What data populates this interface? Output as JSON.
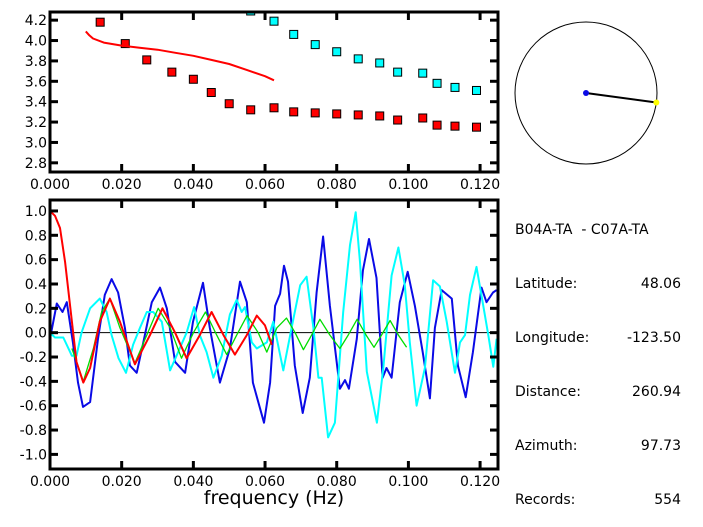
{
  "colors": {
    "red": "#ff0000",
    "cyan": "#00ffff",
    "blue": "#0a0ae6",
    "green": "#00dd00",
    "yellow": "#ffff00"
  },
  "chart_data": [
    {
      "type": "scatter",
      "xlim": [
        0,
        0.125
      ],
      "ylim": [
        2.71,
        4.28
      ],
      "xticks": [
        "0.000",
        "0.020",
        "0.040",
        "0.060",
        "0.080",
        "0.100",
        "0.120"
      ],
      "yticks": [
        "2.8",
        "3.0",
        "3.2",
        "3.4",
        "3.6",
        "3.8",
        "4.0",
        "4.2"
      ],
      "grid": false,
      "series": [
        {
          "color": "red",
          "marker": "square",
          "points": [
            [
              0.014,
              4.18
            ],
            [
              0.021,
              3.97
            ],
            [
              0.027,
              3.81
            ],
            [
              0.034,
              3.69
            ],
            [
              0.04,
              3.62
            ],
            [
              0.045,
              3.49
            ],
            [
              0.05,
              3.38
            ],
            [
              0.056,
              3.32
            ],
            [
              0.0625,
              3.34
            ],
            [
              0.068,
              3.3
            ],
            [
              0.074,
              3.29
            ],
            [
              0.08,
              3.28
            ],
            [
              0.086,
              3.27
            ],
            [
              0.092,
              3.26
            ],
            [
              0.097,
              3.22
            ],
            [
              0.104,
              3.24
            ],
            [
              0.108,
              3.17
            ],
            [
              0.113,
              3.16
            ],
            [
              0.119,
              3.15
            ]
          ]
        },
        {
          "color": "cyan",
          "marker": "square",
          "points": [
            [
              0.056,
              4.29
            ],
            [
              0.0625,
              4.19
            ],
            [
              0.068,
              4.06
            ],
            [
              0.074,
              3.96
            ],
            [
              0.08,
              3.89
            ],
            [
              0.086,
              3.82
            ],
            [
              0.092,
              3.78
            ],
            [
              0.097,
              3.69
            ],
            [
              0.104,
              3.68
            ],
            [
              0.108,
              3.58
            ],
            [
              0.113,
              3.54
            ],
            [
              0.119,
              3.51
            ]
          ]
        },
        {
          "color": "red",
          "marker": "line",
          "points": [
            [
              0.01,
              4.09
            ],
            [
              0.011,
              4.05
            ],
            [
              0.012,
              4.02
            ],
            [
              0.015,
              3.98
            ],
            [
              0.02,
              3.95
            ],
            [
              0.025,
              3.93
            ],
            [
              0.03,
              3.91
            ],
            [
              0.035,
              3.88
            ],
            [
              0.04,
              3.85
            ],
            [
              0.045,
              3.81
            ],
            [
              0.05,
              3.77
            ],
            [
              0.055,
              3.71
            ],
            [
              0.06,
              3.65
            ],
            [
              0.0625,
              3.61
            ]
          ]
        }
      ]
    },
    {
      "type": "line",
      "xlabel": "frequency (Hz)",
      "xlim": [
        0,
        0.125
      ],
      "ylim": [
        -1.12,
        1.09
      ],
      "xticks": [
        "0.000",
        "0.020",
        "0.040",
        "0.060",
        "0.080",
        "0.100",
        "0.120"
      ],
      "yticks": [
        "-1.0",
        "-0.8",
        "-0.6",
        "-0.4",
        "-0.2",
        "0.0",
        "0.2",
        "0.4",
        "0.6",
        "0.8",
        "1.0"
      ],
      "grid": false,
      "zero_line": true,
      "series": [
        {
          "color": "blue",
          "points": [
            [
              0,
              -0.05
            ],
            [
              0.0019,
              0.24
            ],
            [
              0.0035,
              0.17
            ],
            [
              0.0047,
              0.25
            ],
            [
              0.0064,
              -0.08
            ],
            [
              0.0078,
              -0.41
            ],
            [
              0.0092,
              -0.61
            ],
            [
              0.0112,
              -0.57
            ],
            [
              0.0134,
              -0.05
            ],
            [
              0.0153,
              0.31
            ],
            [
              0.0172,
              0.44
            ],
            [
              0.019,
              0.33
            ],
            [
              0.0209,
              0.04
            ],
            [
              0.0223,
              -0.27
            ],
            [
              0.0242,
              -0.33
            ],
            [
              0.0259,
              -0.1
            ],
            [
              0.0284,
              0.25
            ],
            [
              0.0307,
              0.37
            ],
            [
              0.0326,
              0.2
            ],
            [
              0.0349,
              -0.24
            ],
            [
              0.0377,
              -0.33
            ],
            [
              0.0399,
              0.09
            ],
            [
              0.0427,
              0.41
            ],
            [
              0.0446,
              0.04
            ],
            [
              0.0474,
              -0.41
            ],
            [
              0.0502,
              -0.13
            ],
            [
              0.053,
              0.42
            ],
            [
              0.0549,
              0.25
            ],
            [
              0.0566,
              -0.41
            ],
            [
              0.0597,
              -0.74
            ],
            [
              0.0614,
              -0.41
            ],
            [
              0.0628,
              0.22
            ],
            [
              0.0642,
              0.32
            ],
            [
              0.0653,
              0.55
            ],
            [
              0.0664,
              0.42
            ],
            [
              0.0683,
              -0.27
            ],
            [
              0.0705,
              -0.66
            ],
            [
              0.0725,
              -0.37
            ],
            [
              0.0744,
              0.33
            ],
            [
              0.0762,
              0.79
            ],
            [
              0.0781,
              0.22
            ],
            [
              0.0809,
              -0.46
            ],
            [
              0.0823,
              -0.39
            ],
            [
              0.0834,
              -0.46
            ],
            [
              0.0856,
              -0.05
            ],
            [
              0.0873,
              0.51
            ],
            [
              0.089,
              0.77
            ],
            [
              0.0911,
              0.45
            ],
            [
              0.0928,
              -0.37
            ],
            [
              0.0939,
              -0.29
            ],
            [
              0.0953,
              -0.37
            ],
            [
              0.0976,
              0.25
            ],
            [
              0.0998,
              0.5
            ],
            [
              0.1018,
              0.22
            ],
            [
              0.104,
              -0.16
            ],
            [
              0.106,
              -0.54
            ],
            [
              0.1074,
              0.04
            ],
            [
              0.1093,
              0.35
            ],
            [
              0.1121,
              0.28
            ],
            [
              0.1138,
              -0.27
            ],
            [
              0.116,
              -0.53
            ],
            [
              0.118,
              -0.16
            ],
            [
              0.1204,
              0.37
            ],
            [
              0.1218,
              0.25
            ],
            [
              0.1236,
              0.33
            ],
            [
              0.1246,
              0.35
            ]
          ]
        },
        {
          "color": "cyan",
          "points": [
            [
              0,
              0
            ],
            [
              0.0014,
              -0.04
            ],
            [
              0.0037,
              -0.04
            ],
            [
              0.0061,
              -0.19
            ],
            [
              0.0074,
              -0.19
            ],
            [
              0.0088,
              0
            ],
            [
              0.0112,
              0.2
            ],
            [
              0.0139,
              0.28
            ],
            [
              0.0158,
              0.17
            ],
            [
              0.0172,
              -0.02
            ],
            [
              0.0191,
              -0.21
            ],
            [
              0.0212,
              -0.33
            ],
            [
              0.0232,
              -0.1
            ],
            [
              0.0251,
              0.04
            ],
            [
              0.027,
              0.17
            ],
            [
              0.0288,
              0.17
            ],
            [
              0.0312,
              0.09
            ],
            [
              0.0335,
              -0.31
            ],
            [
              0.0353,
              -0.19
            ],
            [
              0.0381,
              0
            ],
            [
              0.0402,
              0.21
            ],
            [
              0.0418,
              -0.02
            ],
            [
              0.0437,
              -0.16
            ],
            [
              0.0456,
              -0.37
            ],
            [
              0.0479,
              -0.19
            ],
            [
              0.0502,
              0.15
            ],
            [
              0.0521,
              0.27
            ],
            [
              0.0535,
              0.17
            ],
            [
              0.0544,
              0.21
            ],
            [
              0.0563,
              -0.08
            ],
            [
              0.0577,
              -0.13
            ],
            [
              0.0605,
              -0.08
            ],
            [
              0.0623,
              0.09
            ],
            [
              0.0651,
              -0.31
            ],
            [
              0.0674,
              0.04
            ],
            [
              0.0698,
              0.39
            ],
            [
              0.0716,
              0.46
            ],
            [
              0.0735,
              0.04
            ],
            [
              0.0749,
              -0.37
            ],
            [
              0.0758,
              -0.37
            ],
            [
              0.0776,
              -0.86
            ],
            [
              0.0795,
              -0.74
            ],
            [
              0.0818,
              0.17
            ],
            [
              0.0837,
              0.72
            ],
            [
              0.0853,
              0.99
            ],
            [
              0.0865,
              0.58
            ],
            [
              0.0884,
              -0.32
            ],
            [
              0.0912,
              -0.74
            ],
            [
              0.093,
              -0.29
            ],
            [
              0.0953,
              0.47
            ],
            [
              0.0972,
              0.7
            ],
            [
              0.099,
              0.39
            ],
            [
              0.1004,
              -0.08
            ],
            [
              0.1023,
              -0.6
            ],
            [
              0.1046,
              -0.29
            ],
            [
              0.1069,
              0.43
            ],
            [
              0.1088,
              0.38
            ],
            [
              0.1107,
              0.09
            ],
            [
              0.113,
              -0.33
            ],
            [
              0.1144,
              -0.08
            ],
            [
              0.1158,
              -0.02
            ],
            [
              0.1172,
              0.31
            ],
            [
              0.119,
              0.54
            ],
            [
              0.1209,
              0.22
            ],
            [
              0.1223,
              -0.02
            ],
            [
              0.1237,
              -0.28
            ],
            [
              0.1246,
              -0.05
            ]
          ]
        },
        {
          "color": "green",
          "points": [
            [
              0.0061,
              -0.13
            ],
            [
              0.0093,
              -0.4
            ],
            [
              0.0121,
              -0.13
            ],
            [
              0.0144,
              0.17
            ],
            [
              0.0167,
              0.28
            ],
            [
              0.0195,
              0.04
            ],
            [
              0.0237,
              -0.25
            ],
            [
              0.027,
              -0.02
            ],
            [
              0.0302,
              0.2
            ],
            [
              0.0335,
              0.04
            ],
            [
              0.0367,
              -0.21
            ],
            [
              0.04,
              0
            ],
            [
              0.0434,
              0.17
            ],
            [
              0.0465,
              -0.02
            ],
            [
              0.0493,
              -0.18
            ],
            [
              0.0521,
              -0.02
            ],
            [
              0.055,
              0.14
            ],
            [
              0.0581,
              0
            ],
            [
              0.0605,
              -0.16
            ],
            [
              0.0633,
              0.04
            ],
            [
              0.066,
              0.12
            ],
            [
              0.0684,
              0
            ],
            [
              0.0707,
              -0.14
            ],
            [
              0.073,
              -0.02
            ],
            [
              0.0753,
              0.11
            ],
            [
              0.0781,
              -0.02
            ],
            [
              0.0809,
              -0.13
            ],
            [
              0.0832,
              -0.02
            ],
            [
              0.0857,
              0.11
            ],
            [
              0.0882,
              -0.02
            ],
            [
              0.0904,
              -0.12
            ],
            [
              0.0925,
              -0.02
            ],
            [
              0.0949,
              0.1
            ],
            [
              0.0972,
              -0.02
            ],
            [
              0.0995,
              -0.12
            ]
          ]
        },
        {
          "color": "red",
          "points": [
            [
              0,
              1.0
            ],
            [
              0.0014,
              0.96
            ],
            [
              0.0028,
              0.86
            ],
            [
              0.0042,
              0.58
            ],
            [
              0.0056,
              0.22
            ],
            [
              0.0074,
              -0.24
            ],
            [
              0.0093,
              -0.41
            ],
            [
              0.0112,
              -0.29
            ],
            [
              0.0139,
              0.09
            ],
            [
              0.0167,
              0.28
            ],
            [
              0.0195,
              0.09
            ],
            [
              0.0237,
              -0.26
            ],
            [
              0.0279,
              -0.02
            ],
            [
              0.0314,
              0.2
            ],
            [
              0.0349,
              0
            ],
            [
              0.0381,
              -0.21
            ],
            [
              0.0418,
              -0.02
            ],
            [
              0.0451,
              0.17
            ],
            [
              0.0484,
              -0.02
            ],
            [
              0.0516,
              -0.18
            ],
            [
              0.0549,
              -0.02
            ],
            [
              0.0577,
              0.14
            ],
            [
              0.06,
              0.06
            ],
            [
              0.0619,
              -0.1
            ]
          ]
        }
      ]
    },
    {
      "type": "polar",
      "azimuth_deg": 97.73
    }
  ],
  "info": {
    "title": "B04A-TA  - C07A-TA",
    "rows": [
      {
        "label": "Latitude:",
        "value": "48.06"
      },
      {
        "label": "Longitude:",
        "value": "-123.50"
      },
      {
        "label": "Distance:",
        "value": "260.94"
      },
      {
        "label": "Azimuth:",
        "value": "97.73"
      },
      {
        "label": "Records:",
        "value": "554"
      }
    ]
  }
}
